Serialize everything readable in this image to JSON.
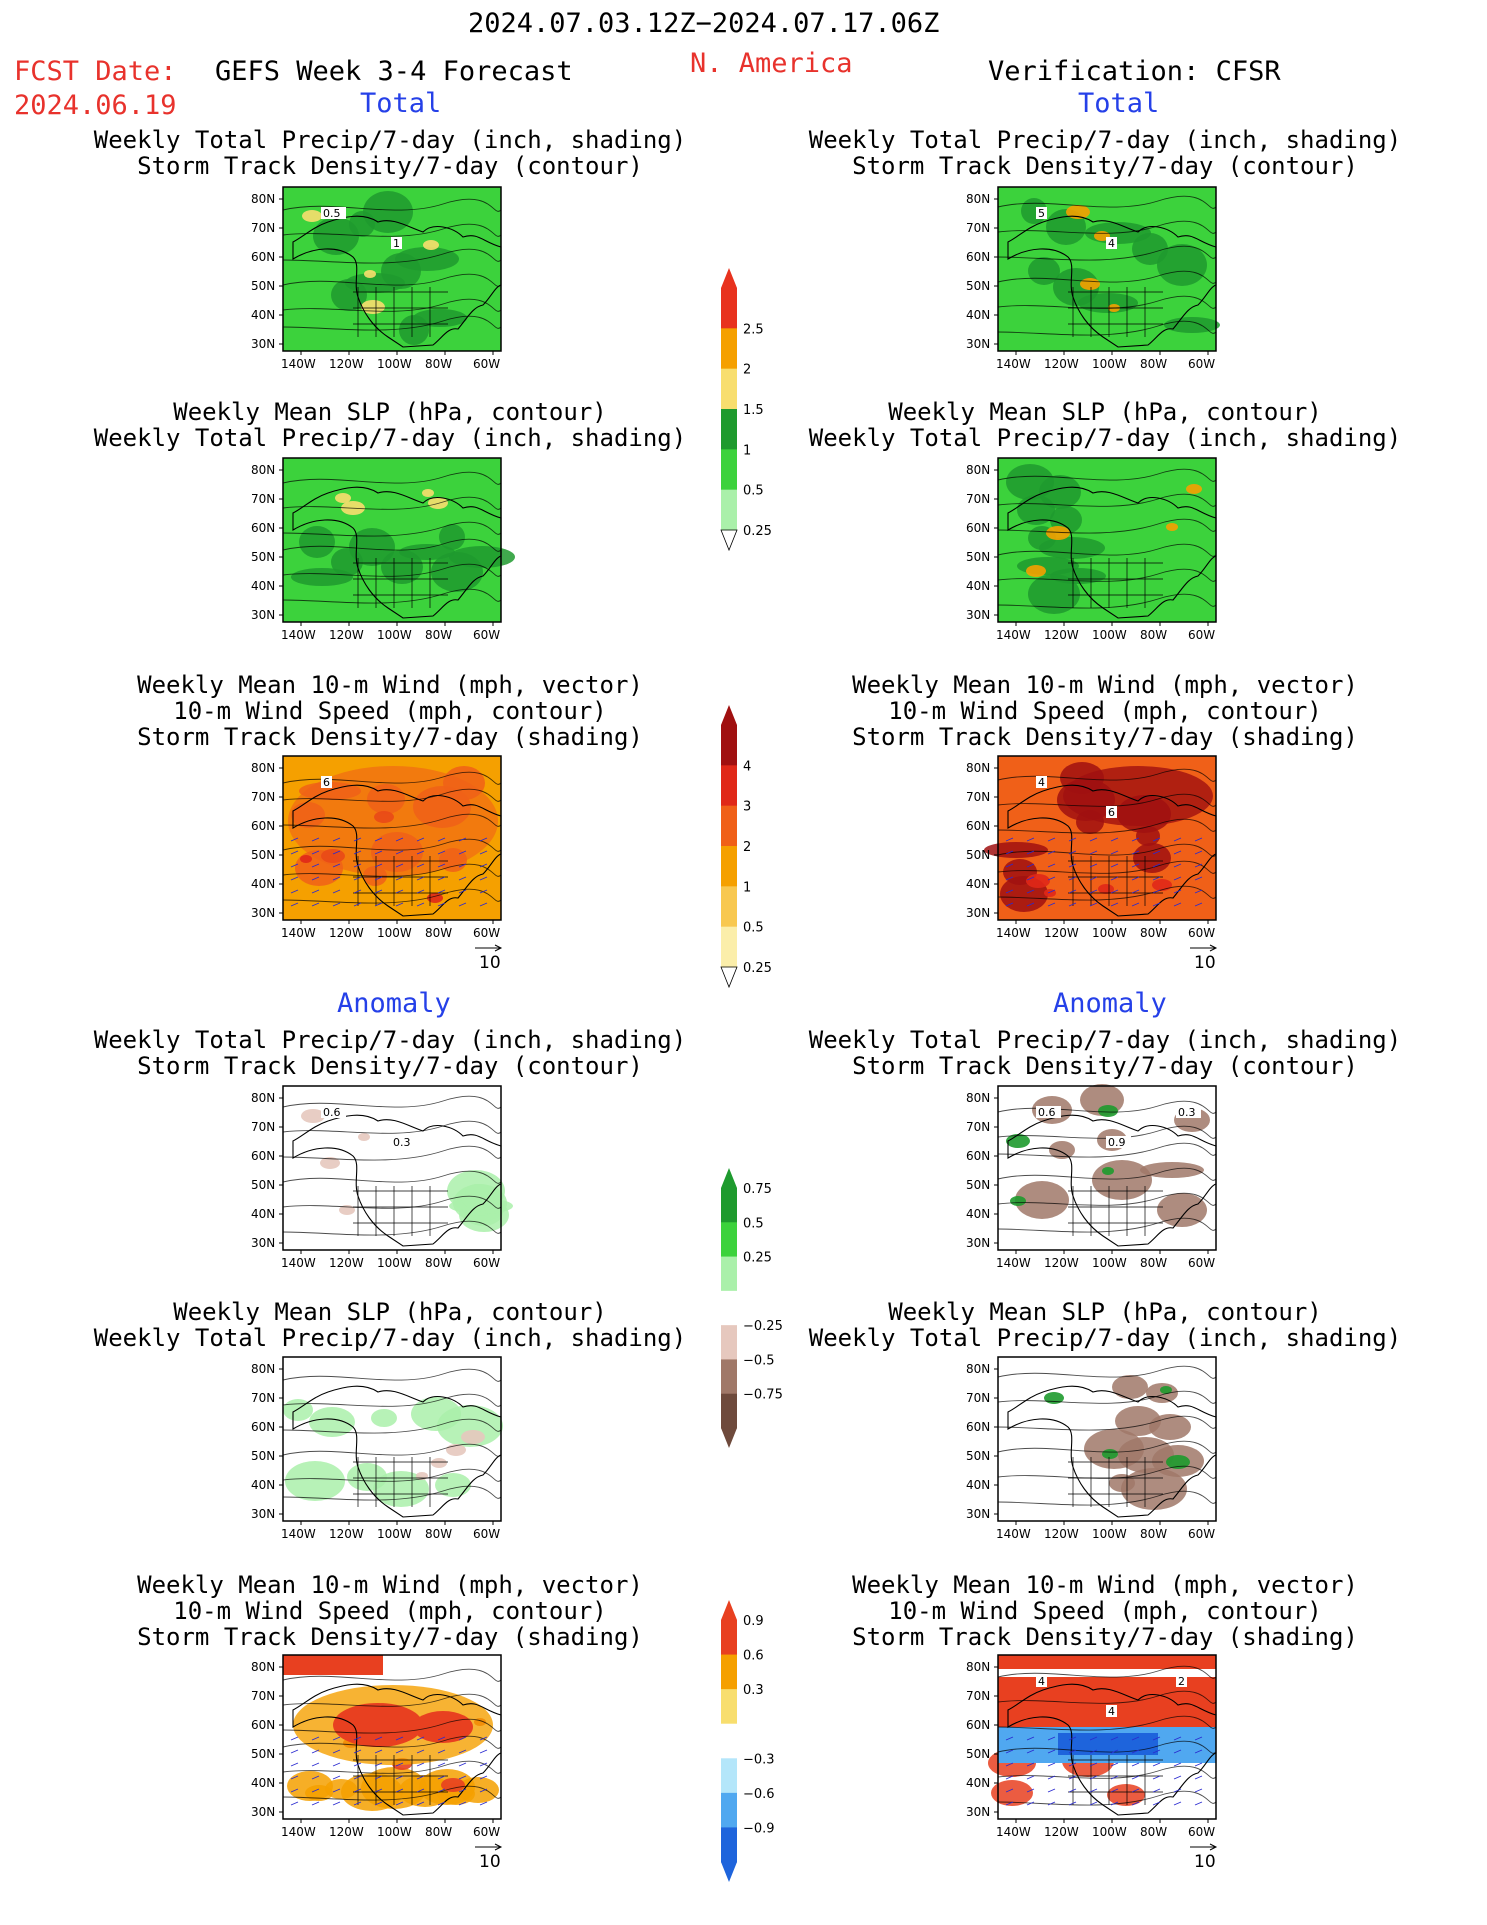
{
  "header": {
    "date_range": "2024.07.03.12Z−2024.07.17.06Z",
    "fcst_label": "FCST Date:",
    "fcst_date": "2024.06.19",
    "model": "GEFS Week 3-4 Forecast",
    "region": "N. America",
    "verification": "Verification: CFSR"
  },
  "sections": {
    "total": "Total",
    "anomaly": "Anomaly"
  },
  "titles": {
    "precip_storm": [
      "Weekly Total Precip/7-day (inch, shading)",
      "Storm Track Density/7-day (contour)"
    ],
    "slp_precip": [
      "Weekly Mean SLP (hPa, contour)",
      "Weekly Total Precip/7-day (inch, shading)"
    ],
    "wind_storm": [
      "Weekly Mean 10-m Wind (mph, vector)",
      "10-m Wind Speed (mph, contour)",
      "Storm Track Density/7-day (shading)"
    ]
  },
  "axes": {
    "lat_labels": [
      "80N",
      "70N",
      "60N",
      "50N",
      "40N",
      "30N"
    ],
    "lon_labels": [
      "140W",
      "120W",
      "100W",
      "80W",
      "60W"
    ],
    "vector_ref": "10"
  },
  "colorbars": {
    "precip_total": {
      "labels": [
        "2.5",
        "2",
        "1.5",
        "1",
        "0.5",
        "0.25"
      ],
      "colors": [
        "#e8321e",
        "#f5a000",
        "#f8de6e",
        "#1e9a2e",
        "#3cd23c",
        "#aaf0aa"
      ]
    },
    "storm_total": {
      "labels": [
        "4",
        "3",
        "2",
        "1",
        "0.5",
        "0.25"
      ],
      "colors": [
        "#a01010",
        "#e02818",
        "#f06018",
        "#f5a000",
        "#f8c850",
        "#fbeeaa"
      ]
    },
    "precip_anom": {
      "labels": [
        "0.75",
        "0.5",
        "0.25",
        "−0.25",
        "−0.5",
        "−0.75"
      ],
      "colors": [
        "#1e9a2e",
        "#3cd23c",
        "#aaf0aa",
        "#ffffff",
        "#e6c8be",
        "#a07868",
        "#6e4a3c"
      ]
    },
    "storm_anom": {
      "labels": [
        "0.9",
        "0.6",
        "0.3",
        "−0.3",
        "−0.6",
        "−0.9"
      ],
      "colors": [
        "#e84020",
        "#f5a000",
        "#f8de6e",
        "#ffffff",
        "#b4e6fa",
        "#50a8f0",
        "#1e64dc"
      ]
    }
  },
  "maps": {
    "r1l": {
      "fill": "#3cd23c",
      "fill2": "#1e9a2e",
      "accent": "#f8de6e",
      "contour_labels": [
        "0.5",
        "1"
      ]
    },
    "r1r": {
      "fill": "#3cd23c",
      "fill2": "#1e9a2e",
      "accent": "#f5a000",
      "contour_labels": [
        "5",
        "4"
      ]
    },
    "r2l": {
      "fill": "#3cd23c",
      "fill2": "#1e9a2e",
      "accent": "#f8de6e",
      "contour_labels": []
    },
    "r2r": {
      "fill": "#3cd23c",
      "fill2": "#1e9a2e",
      "accent": "#f5a000",
      "contour_labels": []
    },
    "r3l": {
      "fill": "#f5a000",
      "fill2": "#f06018",
      "accent": "#e02818",
      "contour_labels": [
        "6"
      ]
    },
    "r3r": {
      "fill": "#f06018",
      "fill2": "#a01010",
      "accent": "#e02818",
      "contour_labels": [
        "4",
        "6"
      ]
    },
    "r4l": {
      "fill": "#ffffff",
      "fill2": "#aaf0aa",
      "accent": "#e6c8be",
      "contour_labels": [
        "0.6",
        "0.3"
      ]
    },
    "r4r": {
      "fill": "#ffffff",
      "fill2": "#a07868",
      "accent": "#1e9a2e",
      "contour_labels": [
        "0.6",
        "0.9",
        "0.3"
      ]
    },
    "r5l": {
      "fill": "#ffffff",
      "fill2": "#aaf0aa",
      "accent": "#e6c8be",
      "contour_labels": []
    },
    "r5r": {
      "fill": "#ffffff",
      "fill2": "#a07868",
      "accent": "#1e9a2e",
      "contour_labels": []
    },
    "r6l": {
      "fill": "#ffffff",
      "fill2": "#f5a000",
      "accent": "#e84020",
      "contour_labels": []
    },
    "r6r": {
      "fill": "#ffffff",
      "fill2": "#e84020",
      "accent": "#1e64dc",
      "contour_labels": [
        "4",
        "4",
        "2"
      ]
    }
  }
}
